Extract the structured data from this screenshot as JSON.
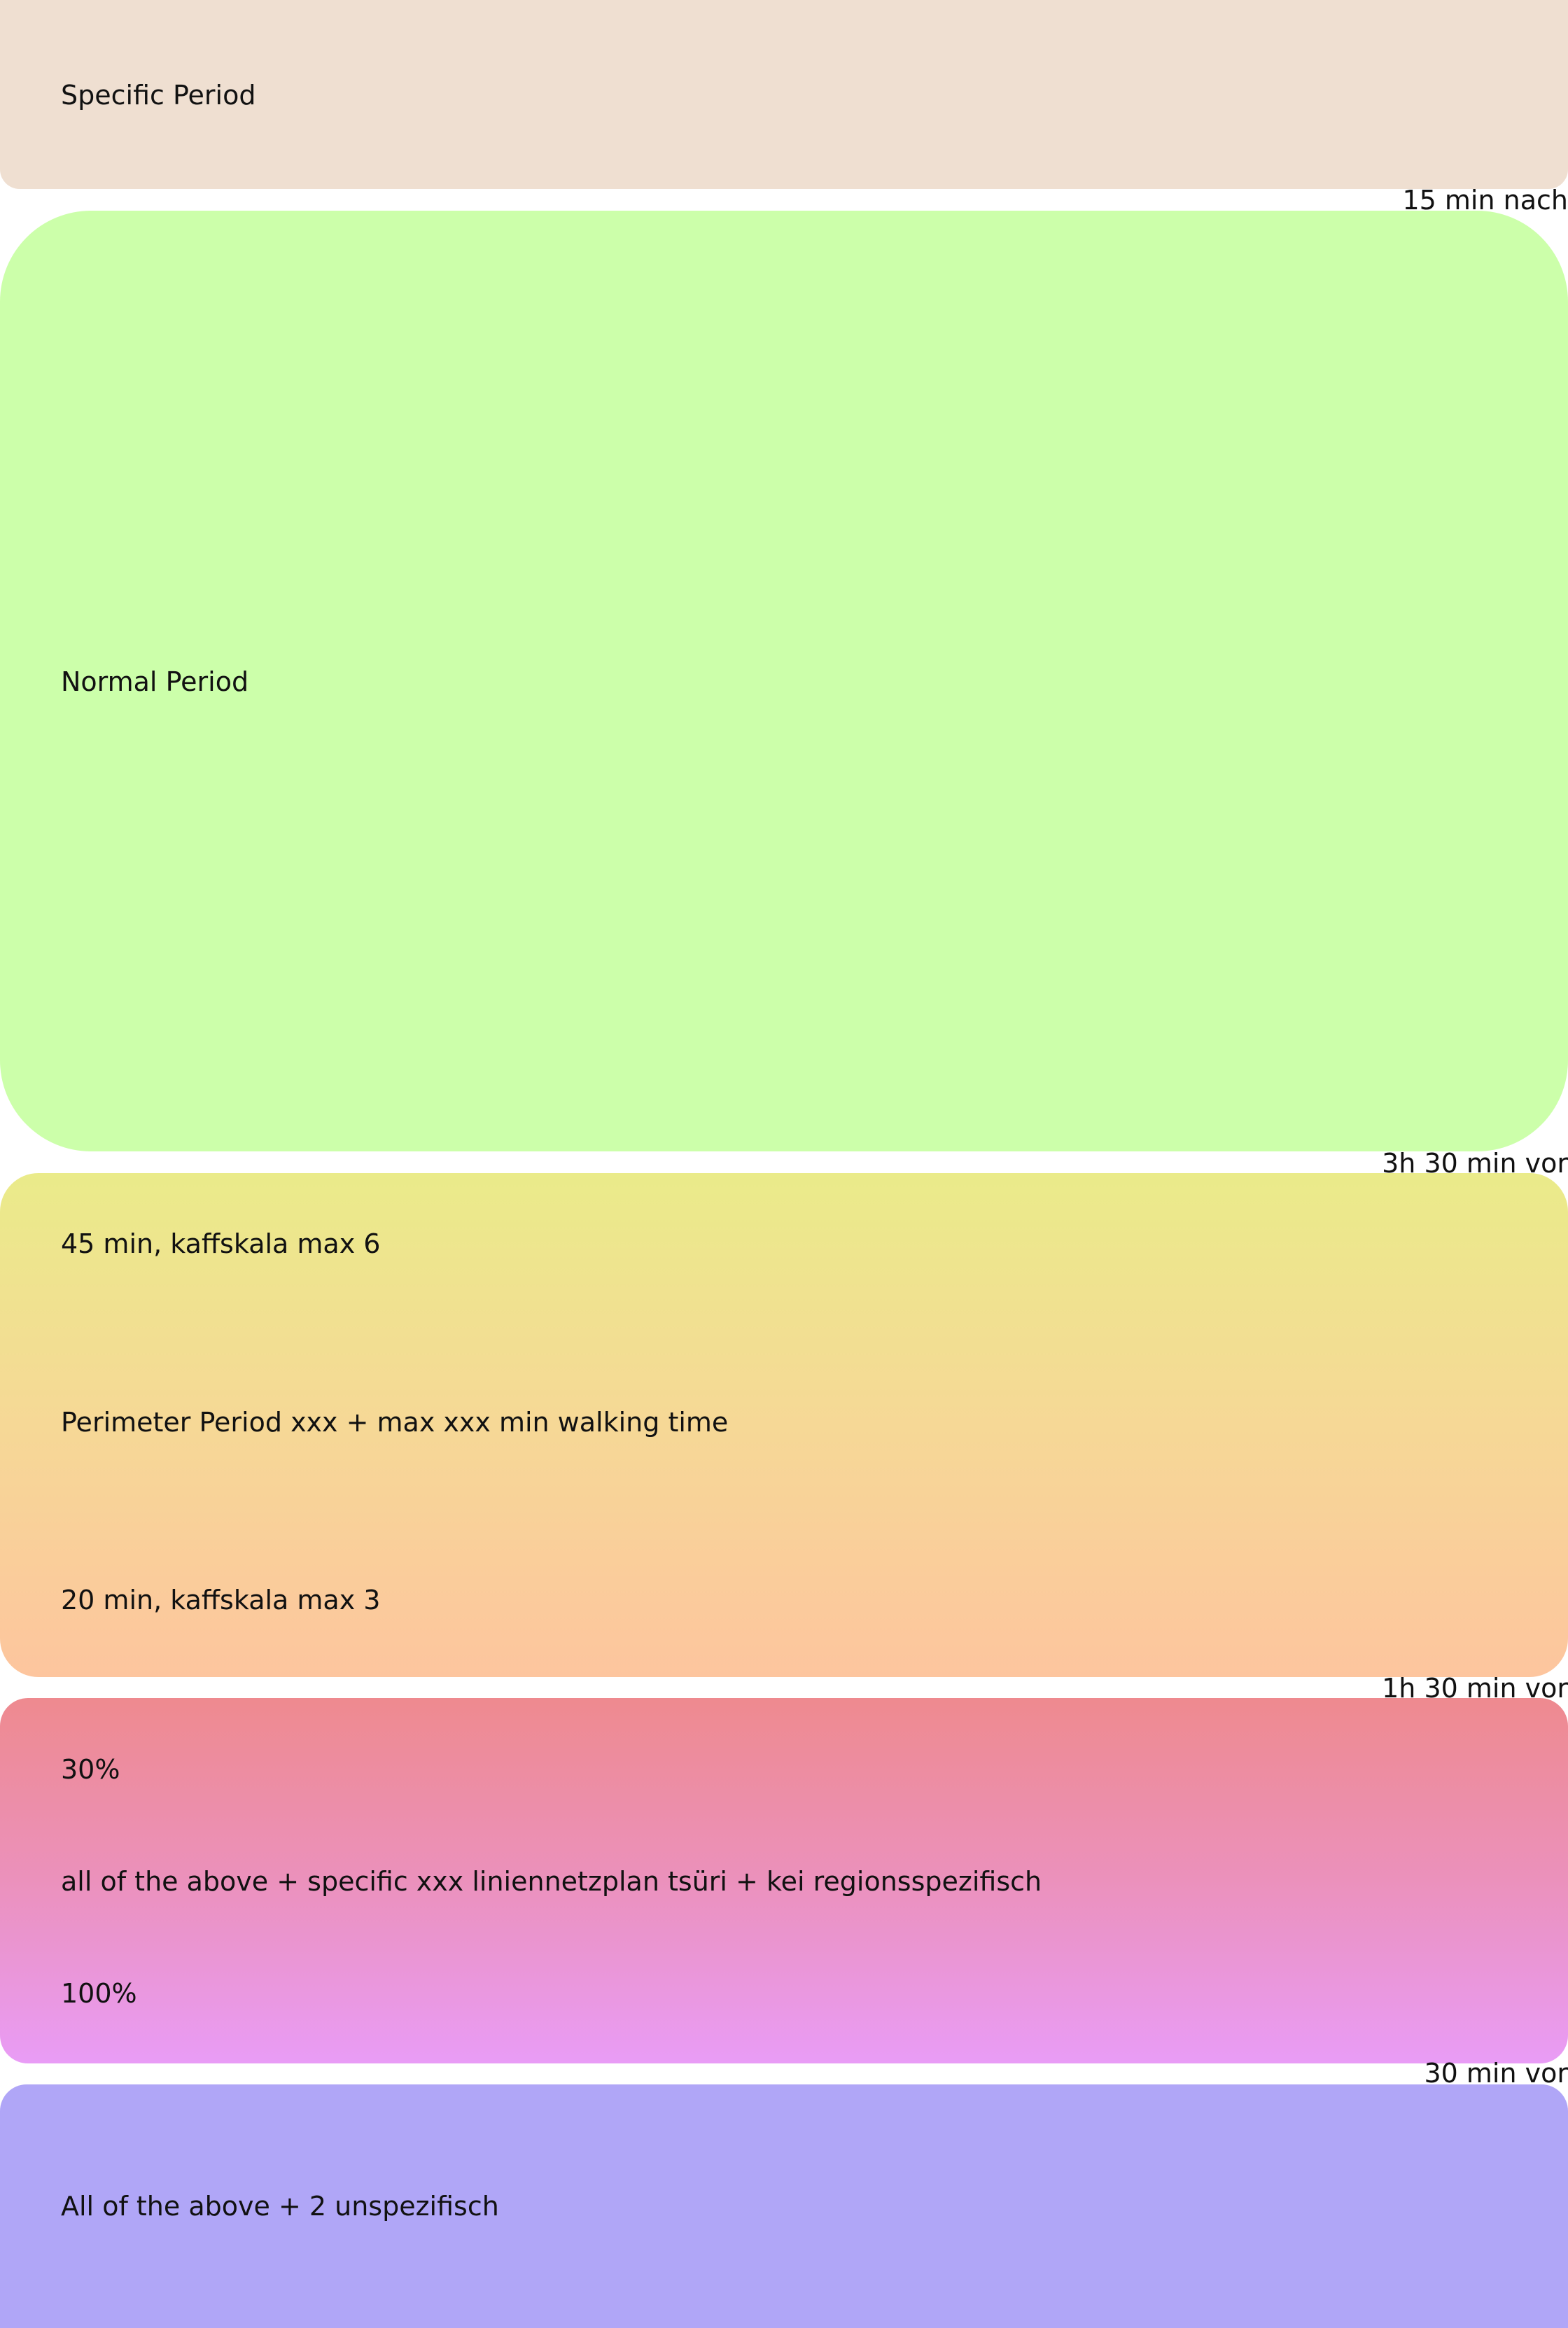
{
  "blocks": {
    "specific": {
      "label": "Specific Period",
      "color": "#efdfd1"
    },
    "normal": {
      "label": "Normal Period",
      "color": "#ccffaa"
    },
    "perimeter": {
      "top_note": "45 min, kaffskala max 6",
      "label": "Perimeter Period xxx + max xxx min walking time",
      "bottom_note": "20 min, kaffskala max 3",
      "gradient_colors": [
        "#eaeb8a",
        "#fdc59e"
      ]
    },
    "above_specific": {
      "top_note": "30%",
      "label": "all of the above + specific xxx liniennetzplan tsüri + kei regionsspezifisch",
      "bottom_note": "100%",
      "gradient_colors": [
        "#ee8a8f",
        "#e99cf6"
      ]
    },
    "unspecific": {
      "label": "All of the above + 2 unspezifisch",
      "color": "#b0a6f7"
    }
  },
  "time_markers": {
    "after_specific": "15 min nach",
    "after_normal": "3h 30 min vor",
    "after_perimeter": "1h 30 min vor",
    "after_above_specific": "30 min vor"
  }
}
